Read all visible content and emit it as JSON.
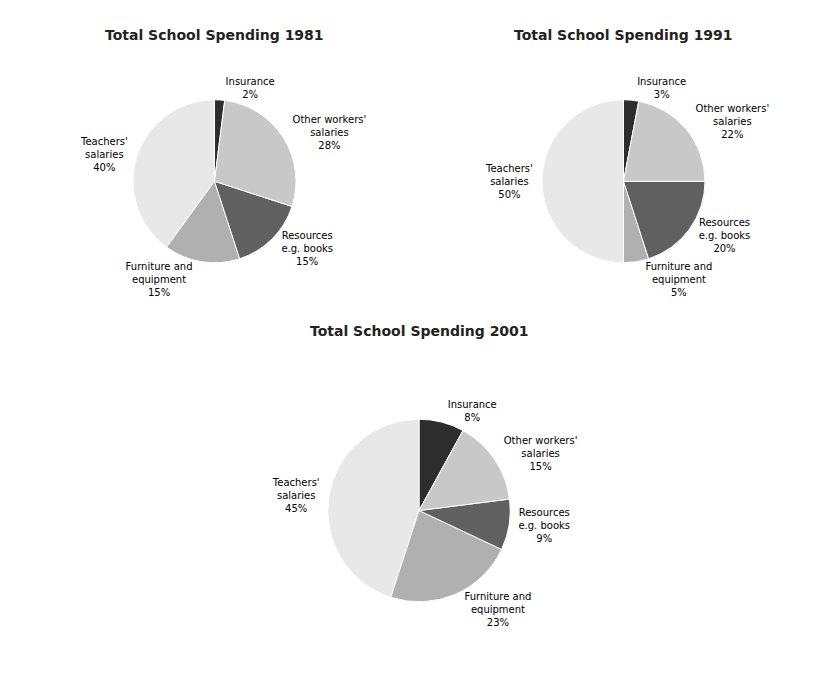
{
  "chart_data": [
    {
      "type": "pie",
      "title": "Total School Spending 1981",
      "categories": [
        "Insurance",
        "Teachers'\nsalaries",
        "Furniture and\nequipment",
        "Resources\ne.g. books",
        "Other workers'\nsalaries"
      ],
      "values": [
        2,
        40,
        15,
        15,
        28
      ],
      "value_labels": [
        "2%",
        "40%",
        "15%",
        "15%",
        "28%"
      ],
      "colors": [
        "#2d2d2d",
        "#e8e8e8",
        "#b0b0b0",
        "#606060",
        "#c8c8c8"
      ],
      "data_labels": true
    },
    {
      "type": "pie",
      "title": "Total School Spending 1991",
      "categories": [
        "Insurance",
        "Teachers'\nsalaries",
        "Furniture and\nequipment",
        "Resources\ne.g. books",
        "Other workers'\nsalaries"
      ],
      "values": [
        3,
        50,
        5,
        20,
        22
      ],
      "value_labels": [
        "3%",
        "50%",
        "5%",
        "20%",
        "22%"
      ],
      "colors": [
        "#2d2d2d",
        "#e8e8e8",
        "#b0b0b0",
        "#606060",
        "#c8c8c8"
      ],
      "data_labels": true
    },
    {
      "type": "pie",
      "title": "Total School Spending 2001",
      "categories": [
        "Insurance",
        "Teachers'\nsalaries",
        "Furniture and\nequipment",
        "Resources\ne.g. books",
        "Other workers'\nsalaries"
      ],
      "values": [
        8,
        45,
        23,
        9,
        15
      ],
      "value_labels": [
        "8%",
        "45%",
        "23%",
        "9%",
        "15%"
      ],
      "colors": [
        "#2d2d2d",
        "#e8e8e8",
        "#b0b0b0",
        "#606060",
        "#c8c8c8"
      ],
      "data_labels": true
    }
  ]
}
